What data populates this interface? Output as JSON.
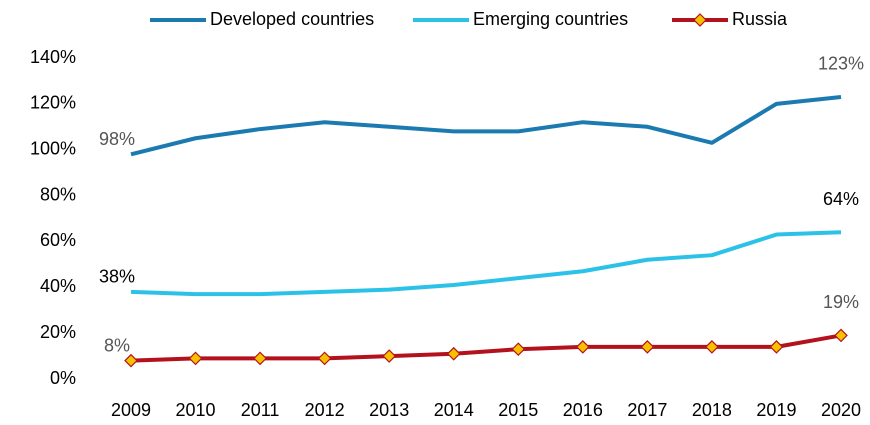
{
  "chart_data": {
    "type": "line",
    "categories": [
      "2009",
      "2010",
      "2011",
      "2012",
      "2013",
      "2014",
      "2015",
      "2016",
      "2017",
      "2018",
      "2019",
      "2020"
    ],
    "series": [
      {
        "name": "Developed countries",
        "color": "#1b7bb1",
        "values": [
          98,
          105,
          109,
          112,
          110,
          108,
          108,
          112,
          110,
          103,
          120,
          123
        ],
        "value_labels": [
          "98%",
          null,
          null,
          null,
          null,
          null,
          null,
          null,
          null,
          null,
          null,
          "123%"
        ]
      },
      {
        "name": "Emerging countries",
        "color": "#2cc2e8",
        "values": [
          38,
          37,
          37,
          38,
          39,
          41,
          44,
          47,
          52,
          54,
          63,
          64
        ],
        "value_labels": [
          "38%",
          null,
          null,
          null,
          null,
          null,
          null,
          null,
          null,
          null,
          null,
          "64%"
        ]
      },
      {
        "name": "Russia",
        "color": "#b3121d",
        "marker_color": "#f6c200",
        "values": [
          8,
          9,
          9,
          9,
          10,
          11,
          13,
          14,
          14,
          14,
          14,
          19
        ],
        "value_labels": [
          "8%",
          null,
          null,
          null,
          null,
          null,
          null,
          null,
          null,
          null,
          null,
          "19%"
        ]
      }
    ],
    "ylim": [
      0,
      140
    ],
    "yticks": [
      {
        "value": 0,
        "label": "0%"
      },
      {
        "value": 20,
        "label": "20%"
      },
      {
        "value": 40,
        "label": "40%"
      },
      {
        "value": 60,
        "label": "60%"
      },
      {
        "value": 80,
        "label": "80%"
      },
      {
        "value": 100,
        "label": "100%"
      },
      {
        "value": 120,
        "label": "120%"
      },
      {
        "value": 140,
        "label": "140%"
      }
    ],
    "legend": "top",
    "grid": false
  }
}
